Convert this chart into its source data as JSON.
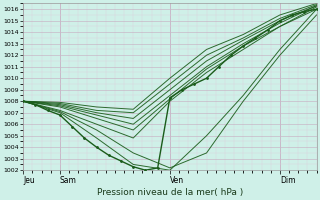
{
  "xlabel": "Pression niveau de la mer( hPa )",
  "ylim": [
    1002,
    1016.5
  ],
  "xlim": [
    0,
    96
  ],
  "yticks": [
    1002,
    1003,
    1004,
    1005,
    1006,
    1007,
    1008,
    1009,
    1010,
    1011,
    1012,
    1013,
    1014,
    1015,
    1016
  ],
  "xtick_labels": [
    "Jeu",
    "Sam",
    "Ven",
    "Dim"
  ],
  "xtick_positions": [
    0,
    12,
    48,
    84
  ],
  "background_color": "#cff0e8",
  "grid_major_color": "#c8b8c8",
  "grid_minor_color": "#ddd0dd",
  "line_color": "#1a5c1a",
  "figsize": [
    3.2,
    2.0
  ],
  "dpi": 100,
  "ensemble_lines": [
    {
      "pts": [
        [
          0,
          1008.0
        ],
        [
          12,
          1007.2
        ],
        [
          24,
          1006.0
        ],
        [
          36,
          1004.8
        ],
        [
          48,
          1008.0
        ],
        [
          60,
          1010.5
        ],
        [
          72,
          1012.5
        ],
        [
          84,
          1014.5
        ],
        [
          96,
          1016.0
        ]
      ]
    },
    {
      "pts": [
        [
          0,
          1008.0
        ],
        [
          12,
          1007.1
        ],
        [
          24,
          1005.5
        ],
        [
          36,
          1003.5
        ],
        [
          48,
          1002.2
        ],
        [
          60,
          1003.5
        ],
        [
          72,
          1008.0
        ],
        [
          84,
          1012.0
        ],
        [
          96,
          1015.5
        ]
      ]
    },
    {
      "pts": [
        [
          0,
          1008.0
        ],
        [
          12,
          1007.0
        ],
        [
          24,
          1004.8
        ],
        [
          36,
          1002.5
        ],
        [
          48,
          1002.0
        ],
        [
          60,
          1005.0
        ],
        [
          72,
          1008.5
        ],
        [
          84,
          1012.5
        ],
        [
          96,
          1016.0
        ]
      ]
    },
    {
      "pts": [
        [
          0,
          1008.0
        ],
        [
          12,
          1007.5
        ],
        [
          24,
          1006.5
        ],
        [
          36,
          1005.5
        ],
        [
          48,
          1008.2
        ],
        [
          60,
          1010.8
        ],
        [
          72,
          1012.8
        ],
        [
          84,
          1014.5
        ],
        [
          96,
          1016.2
        ]
      ]
    },
    {
      "pts": [
        [
          0,
          1008.0
        ],
        [
          12,
          1007.6
        ],
        [
          24,
          1006.8
        ],
        [
          36,
          1006.0
        ],
        [
          48,
          1008.5
        ],
        [
          60,
          1011.0
        ],
        [
          72,
          1013.0
        ],
        [
          84,
          1014.8
        ],
        [
          96,
          1016.3
        ]
      ]
    },
    {
      "pts": [
        [
          0,
          1008.0
        ],
        [
          12,
          1007.7
        ],
        [
          24,
          1007.0
        ],
        [
          36,
          1006.5
        ],
        [
          48,
          1009.0
        ],
        [
          60,
          1011.5
        ],
        [
          72,
          1013.3
        ],
        [
          84,
          1015.0
        ],
        [
          96,
          1016.3
        ]
      ]
    },
    {
      "pts": [
        [
          0,
          1008.0
        ],
        [
          12,
          1007.8
        ],
        [
          24,
          1007.2
        ],
        [
          36,
          1007.0
        ],
        [
          48,
          1009.5
        ],
        [
          60,
          1012.0
        ],
        [
          72,
          1013.5
        ],
        [
          84,
          1015.2
        ],
        [
          96,
          1016.4
        ]
      ]
    },
    {
      "pts": [
        [
          0,
          1008.0
        ],
        [
          12,
          1007.9
        ],
        [
          24,
          1007.5
        ],
        [
          36,
          1007.3
        ],
        [
          48,
          1010.0
        ],
        [
          60,
          1012.5
        ],
        [
          72,
          1013.8
        ],
        [
          84,
          1015.5
        ],
        [
          96,
          1016.5
        ]
      ]
    }
  ],
  "control_line": {
    "pts": [
      [
        0,
        1008.0
      ],
      [
        4,
        1007.7
      ],
      [
        8,
        1007.2
      ],
      [
        12,
        1006.8
      ],
      [
        16,
        1005.8
      ],
      [
        20,
        1004.8
      ],
      [
        24,
        1004.0
      ],
      [
        28,
        1003.3
      ],
      [
        32,
        1002.8
      ],
      [
        36,
        1002.3
      ],
      [
        40,
        1002.0
      ],
      [
        44,
        1002.2
      ],
      [
        48,
        1008.3
      ],
      [
        52,
        1009.0
      ],
      [
        56,
        1009.5
      ],
      [
        60,
        1010.0
      ],
      [
        64,
        1011.0
      ],
      [
        68,
        1012.0
      ],
      [
        72,
        1012.8
      ],
      [
        76,
        1013.5
      ],
      [
        80,
        1014.2
      ],
      [
        84,
        1015.0
      ],
      [
        88,
        1015.5
      ],
      [
        92,
        1015.8
      ],
      [
        96,
        1016.0
      ]
    ]
  }
}
